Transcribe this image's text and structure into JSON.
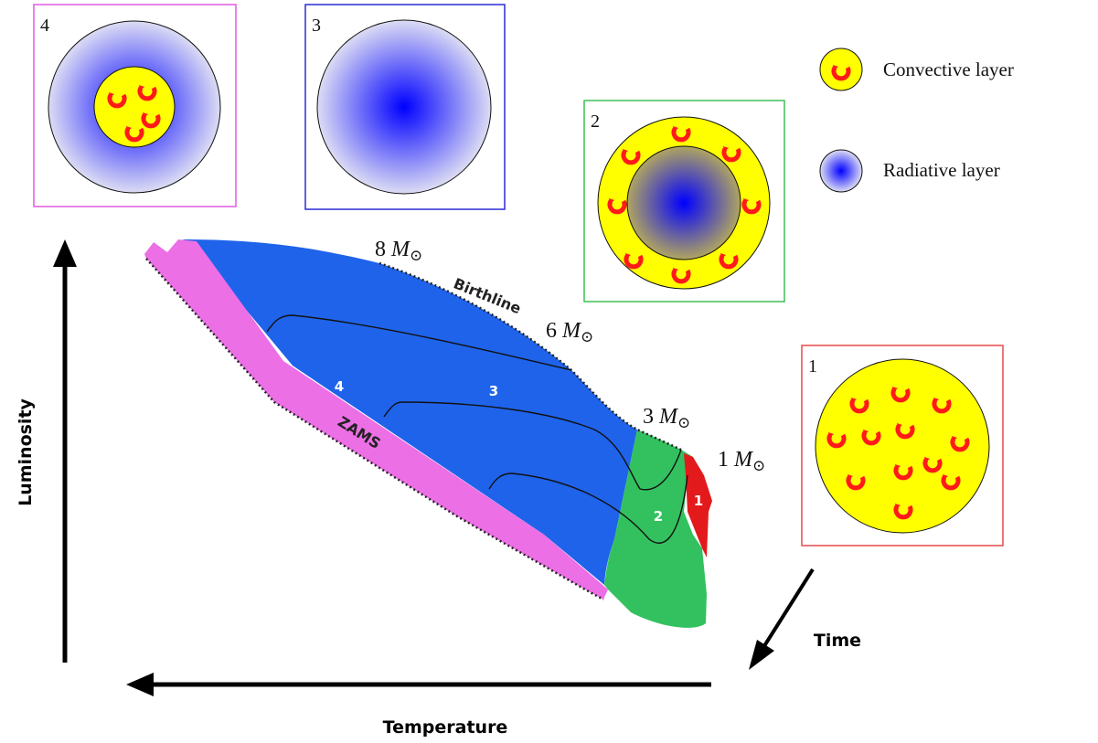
{
  "axes": {
    "y_label": "Luminosity",
    "x_label": "Temperature",
    "time_label": "Time"
  },
  "curves": {
    "birthline_label": "Birthline",
    "zams_label": "ZAMS"
  },
  "masses": {
    "m8": {
      "value": "8",
      "symbol": "M",
      "sub": "⊙"
    },
    "m6": {
      "value": "6",
      "symbol": "M",
      "sub": "⊙"
    },
    "m3": {
      "value": "3",
      "symbol": "M",
      "sub": "⊙"
    },
    "m1": {
      "value": "1",
      "symbol": "M",
      "sub": "⊙"
    }
  },
  "regions": {
    "r1": {
      "label": "1",
      "color": "#e31a1c"
    },
    "r2": {
      "label": "2",
      "color": "#33c15f"
    },
    "r3": {
      "label": "3",
      "color": "#1f63ea"
    },
    "r4": {
      "label": "4",
      "color": "#ec6fe6"
    }
  },
  "panels": {
    "p1": {
      "number": "1",
      "border": "#e84a4a",
      "structure": "fully-convective"
    },
    "p2": {
      "number": "2",
      "border": "#3dbf55",
      "structure": "radiative-core-convective-envelope"
    },
    "p3": {
      "number": "3",
      "border": "#2a2ad6",
      "structure": "fully-radiative"
    },
    "p4": {
      "number": "4",
      "border": "#e05be0",
      "structure": "convective-core-radiative-envelope"
    }
  },
  "legend": {
    "convective": "Convective layer",
    "radiative": "Radiative layer"
  },
  "colors": {
    "convective_fill": "#ffff00",
    "convective_symbol": "#ff1a1a",
    "radiative_center": "#0000ff",
    "radiative_edge": "#dcdcf4"
  }
}
